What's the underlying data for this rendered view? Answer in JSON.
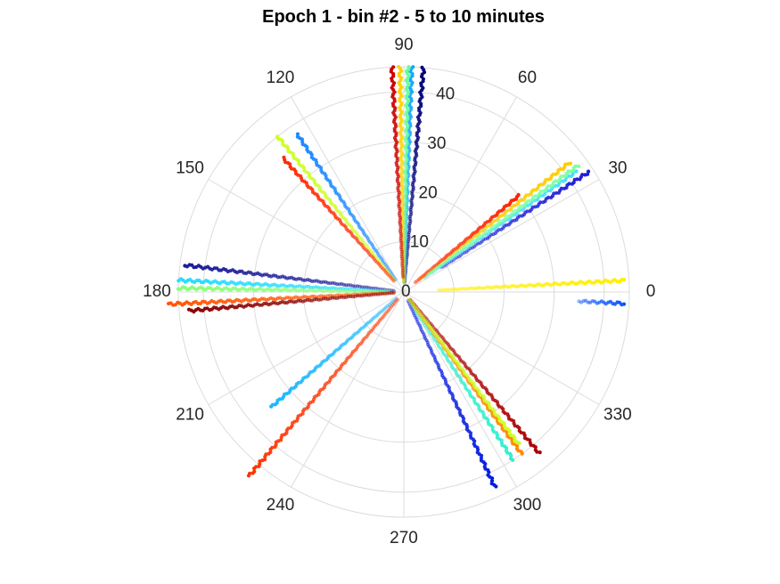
{
  "chart_data": {
    "type": "scatter",
    "coordinate_system": "polar",
    "title": "Epoch 1 - bin #2 - 5 to 10 minutes",
    "angle_ticks": [
      0,
      30,
      60,
      90,
      120,
      150,
      180,
      210,
      240,
      270,
      300,
      330
    ],
    "radius_ticks": [
      0,
      10,
      20,
      30,
      40
    ],
    "rlim": [
      0,
      45
    ],
    "grid": true,
    "colormap": "jet",
    "series": [
      {
        "theta": 3,
        "r": [
          7,
          44
        ],
        "color": "#ffee00"
      },
      {
        "theta": -3,
        "r": [
          35,
          44
        ],
        "color": "#0a55ff"
      },
      {
        "theta": 33,
        "r": [
          9,
          44
        ],
        "color": "#1b1bd6"
      },
      {
        "theta": 35,
        "r": [
          5,
          42
        ],
        "color": "#44e0ff"
      },
      {
        "theta": 38,
        "r": [
          4,
          42
        ],
        "color": "#ffcc00"
      },
      {
        "theta": 40,
        "r": [
          3,
          30
        ],
        "color": "#ff2200"
      },
      {
        "theta": 36,
        "r": [
          6,
          43
        ],
        "color": "#7fffa0"
      },
      {
        "theta": 85,
        "r": [
          2,
          45
        ],
        "color": "#00007a"
      },
      {
        "theta": 88,
        "r": [
          2,
          45
        ],
        "color": "#14a5ff"
      },
      {
        "theta": 89,
        "r": [
          2,
          45
        ],
        "color": "#66ff99"
      },
      {
        "theta": 91,
        "r": [
          2,
          45
        ],
        "color": "#ffd200"
      },
      {
        "theta": 93,
        "r": [
          3,
          45
        ],
        "color": "#cc0000"
      },
      {
        "theta": 124,
        "r": [
          3,
          38
        ],
        "color": "#1a88ff"
      },
      {
        "theta": 129,
        "r": [
          3,
          40
        ],
        "color": "#ccff22"
      },
      {
        "theta": 132,
        "r": [
          3,
          36
        ],
        "color": "#ff2a00"
      },
      {
        "theta": 173,
        "r": [
          2,
          44
        ],
        "color": "#1a1a99"
      },
      {
        "theta": 177,
        "r": [
          3,
          45
        ],
        "color": "#22ddff"
      },
      {
        "theta": 179,
        "r": [
          3,
          45
        ],
        "color": "#88ff77"
      },
      {
        "theta": 183,
        "r": [
          2,
          47
        ],
        "color": "#ff5500"
      },
      {
        "theta": 185,
        "r": [
          2,
          43
        ],
        "color": "#8b0000"
      },
      {
        "theta": 221,
        "r": [
          2,
          35
        ],
        "color": "#1ab8ff"
      },
      {
        "theta": 230,
        "r": [
          2,
          48
        ],
        "color": "#ff3300"
      },
      {
        "theta": 295,
        "r": [
          2,
          43
        ],
        "color": "#0018e0"
      },
      {
        "theta": 303,
        "r": [
          2,
          40
        ],
        "color": "#33eecc"
      },
      {
        "theta": 306,
        "r": [
          2,
          40
        ],
        "color": "#ff8800"
      },
      {
        "theta": 310,
        "r": [
          2,
          42
        ],
        "color": "#aa0000"
      },
      {
        "theta": 307,
        "r": [
          2,
          38
        ],
        "color": "#ccff22"
      }
    ]
  }
}
